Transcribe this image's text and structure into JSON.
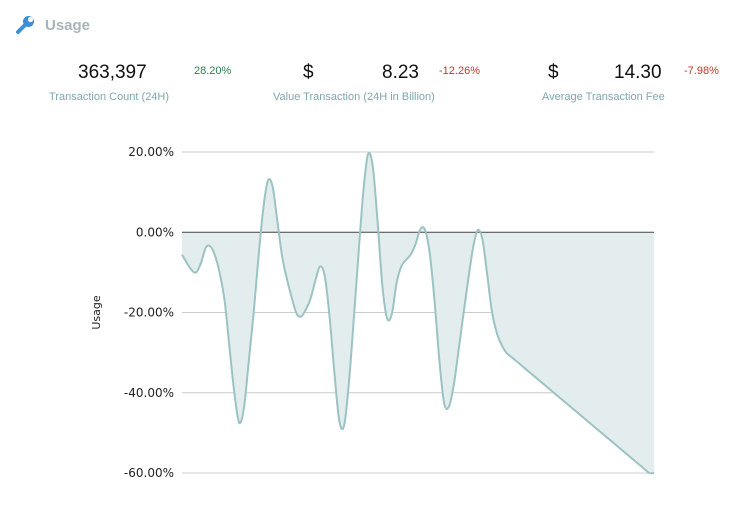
{
  "header": {
    "title": "Usage",
    "icon": "wrench-icon"
  },
  "stats": [
    {
      "value": "363,397",
      "currency": "",
      "change": "28.20%",
      "trend": "up",
      "label": "Transaction Count (24H)"
    },
    {
      "value": "8.23",
      "currency": "$",
      "change": "-12.26%",
      "trend": "down",
      "label": "Value Transaction (24H in Billion)"
    },
    {
      "value": "14.30",
      "currency": "$",
      "change": "-7.98%",
      "trend": "down",
      "label": "Average Transaction Fee"
    }
  ],
  "colors": {
    "line": "#9cc3c4",
    "fill": "#e4eded",
    "grid": "#cccccc",
    "zero": "#444444",
    "up": "#2e7d4f",
    "down": "#c0392b",
    "label": "#7fa7ad"
  },
  "chart_data": {
    "type": "area",
    "ylabel": "Usage",
    "ylim": [
      -60,
      20
    ],
    "yticks": [
      20,
      0,
      -20,
      -40,
      -60
    ],
    "ytick_labels": [
      "20.00%",
      "0.00%",
      "-20.00%",
      "-40.00%",
      "-60.00%"
    ],
    "grid": true,
    "x": [
      0,
      1,
      2,
      3,
      4,
      5,
      6,
      7,
      8,
      9,
      10,
      11,
      12,
      13,
      14,
      15,
      16,
      17,
      18,
      19,
      20,
      21,
      22,
      23,
      24,
      25,
      26,
      27,
      28,
      29,
      30,
      31,
      32,
      33,
      34,
      35,
      36,
      37,
      38,
      39,
      40,
      41,
      42,
      43,
      44,
      45,
      46,
      47,
      48,
      49,
      50,
      51,
      52,
      53,
      54,
      55,
      56,
      57,
      58,
      59,
      60,
      61,
      62,
      63,
      64,
      65,
      66,
      67,
      68,
      69,
      70,
      71,
      72,
      73,
      74,
      75,
      76,
      77,
      78,
      79,
      80,
      81,
      82,
      83,
      84,
      85,
      86,
      87,
      88,
      89,
      90,
      91,
      92,
      93,
      94,
      95,
      96,
      97,
      98,
      99
    ],
    "values": [
      -5.6,
      -7.6,
      -9.4,
      -10.0,
      -7.6,
      -3.8,
      -3.6,
      -6.1,
      -10.7,
      -17.6,
      -29.2,
      -40.2,
      -47.5,
      -43.7,
      -32.2,
      -20.4,
      -6.8,
      5.4,
      12.8,
      11.4,
      2.8,
      -6.0,
      -11.6,
      -16.2,
      -20.2,
      -21.0,
      -19.2,
      -16.4,
      -11.9,
      -8.5,
      -11.3,
      -21.7,
      -35.5,
      -47.0,
      -48.2,
      -37.6,
      -22.1,
      -5.8,
      9.7,
      19.4,
      16.5,
      3.0,
      -13.0,
      -21.4,
      -20.4,
      -12.7,
      -8.5,
      -6.9,
      -5.5,
      -2.9,
      0.8,
      0.5,
      -5.6,
      -17.5,
      -32.1,
      -42.7,
      -43.4,
      -38.1,
      -29.5,
      -20.7,
      -12.1,
      -4.2,
      0.5,
      -1.7,
      -10.4,
      -19.7,
      -25,
      -28,
      -30,
      -31,
      -32,
      -33,
      -34,
      -35,
      -36,
      -37,
      -38,
      -39,
      -40,
      -41,
      -42,
      -43,
      -44,
      -45,
      -46,
      -47,
      -48,
      -49,
      -50,
      -51,
      -52,
      -53,
      -54,
      -55,
      -56,
      -57,
      -58,
      -59,
      -60,
      -60
    ]
  }
}
